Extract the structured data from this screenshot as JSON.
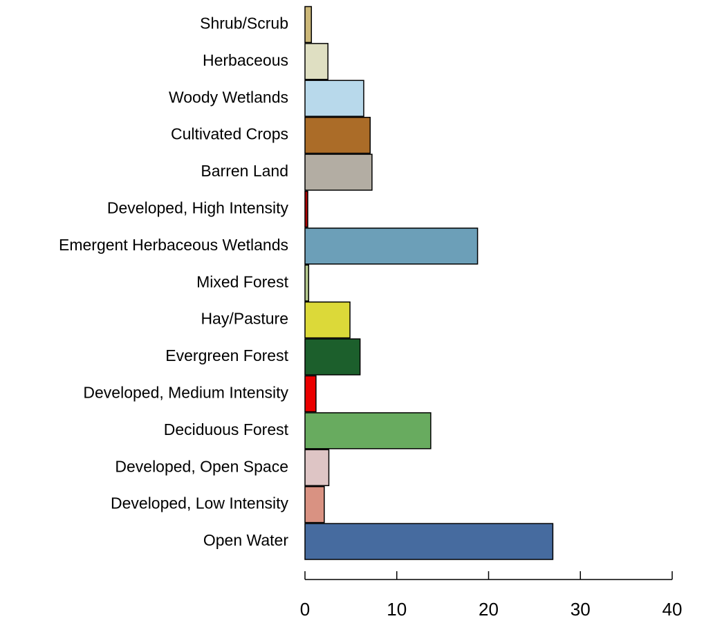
{
  "chart_data": {
    "type": "barh",
    "categories": [
      "Shrub/Scrub",
      "Herbaceous",
      "Woody Wetlands",
      "Cultivated Crops",
      "Barren Land",
      "Developed, High Intensity",
      "Emergent Herbaceous Wetlands",
      "Mixed Forest",
      "Hay/Pasture",
      "Evergreen Forest",
      "Developed, Medium Intensity",
      "Deciduous Forest",
      "Developed, Open Space",
      "Developed, Low Intensity",
      "Open Water"
    ],
    "values": [
      0.7,
      2.5,
      6.4,
      7.1,
      7.3,
      0.3,
      18.8,
      0.4,
      4.9,
      6.0,
      1.2,
      13.7,
      2.6,
      2.1,
      27.0
    ],
    "colors": [
      "#ccb879",
      "#dfdfc2",
      "#b8d9eb",
      "#ab6c28",
      "#b3ada3",
      "#ab0000",
      "#6c9fb8",
      "#b5c98e",
      "#dcd939",
      "#1c5f2c",
      "#eb0000",
      "#68ab5f",
      "#dec5c5",
      "#d99282",
      "#466b9f"
    ],
    "xlim": [
      0,
      40
    ],
    "xticks": [
      0,
      10,
      20,
      30,
      40
    ],
    "grid": false
  }
}
